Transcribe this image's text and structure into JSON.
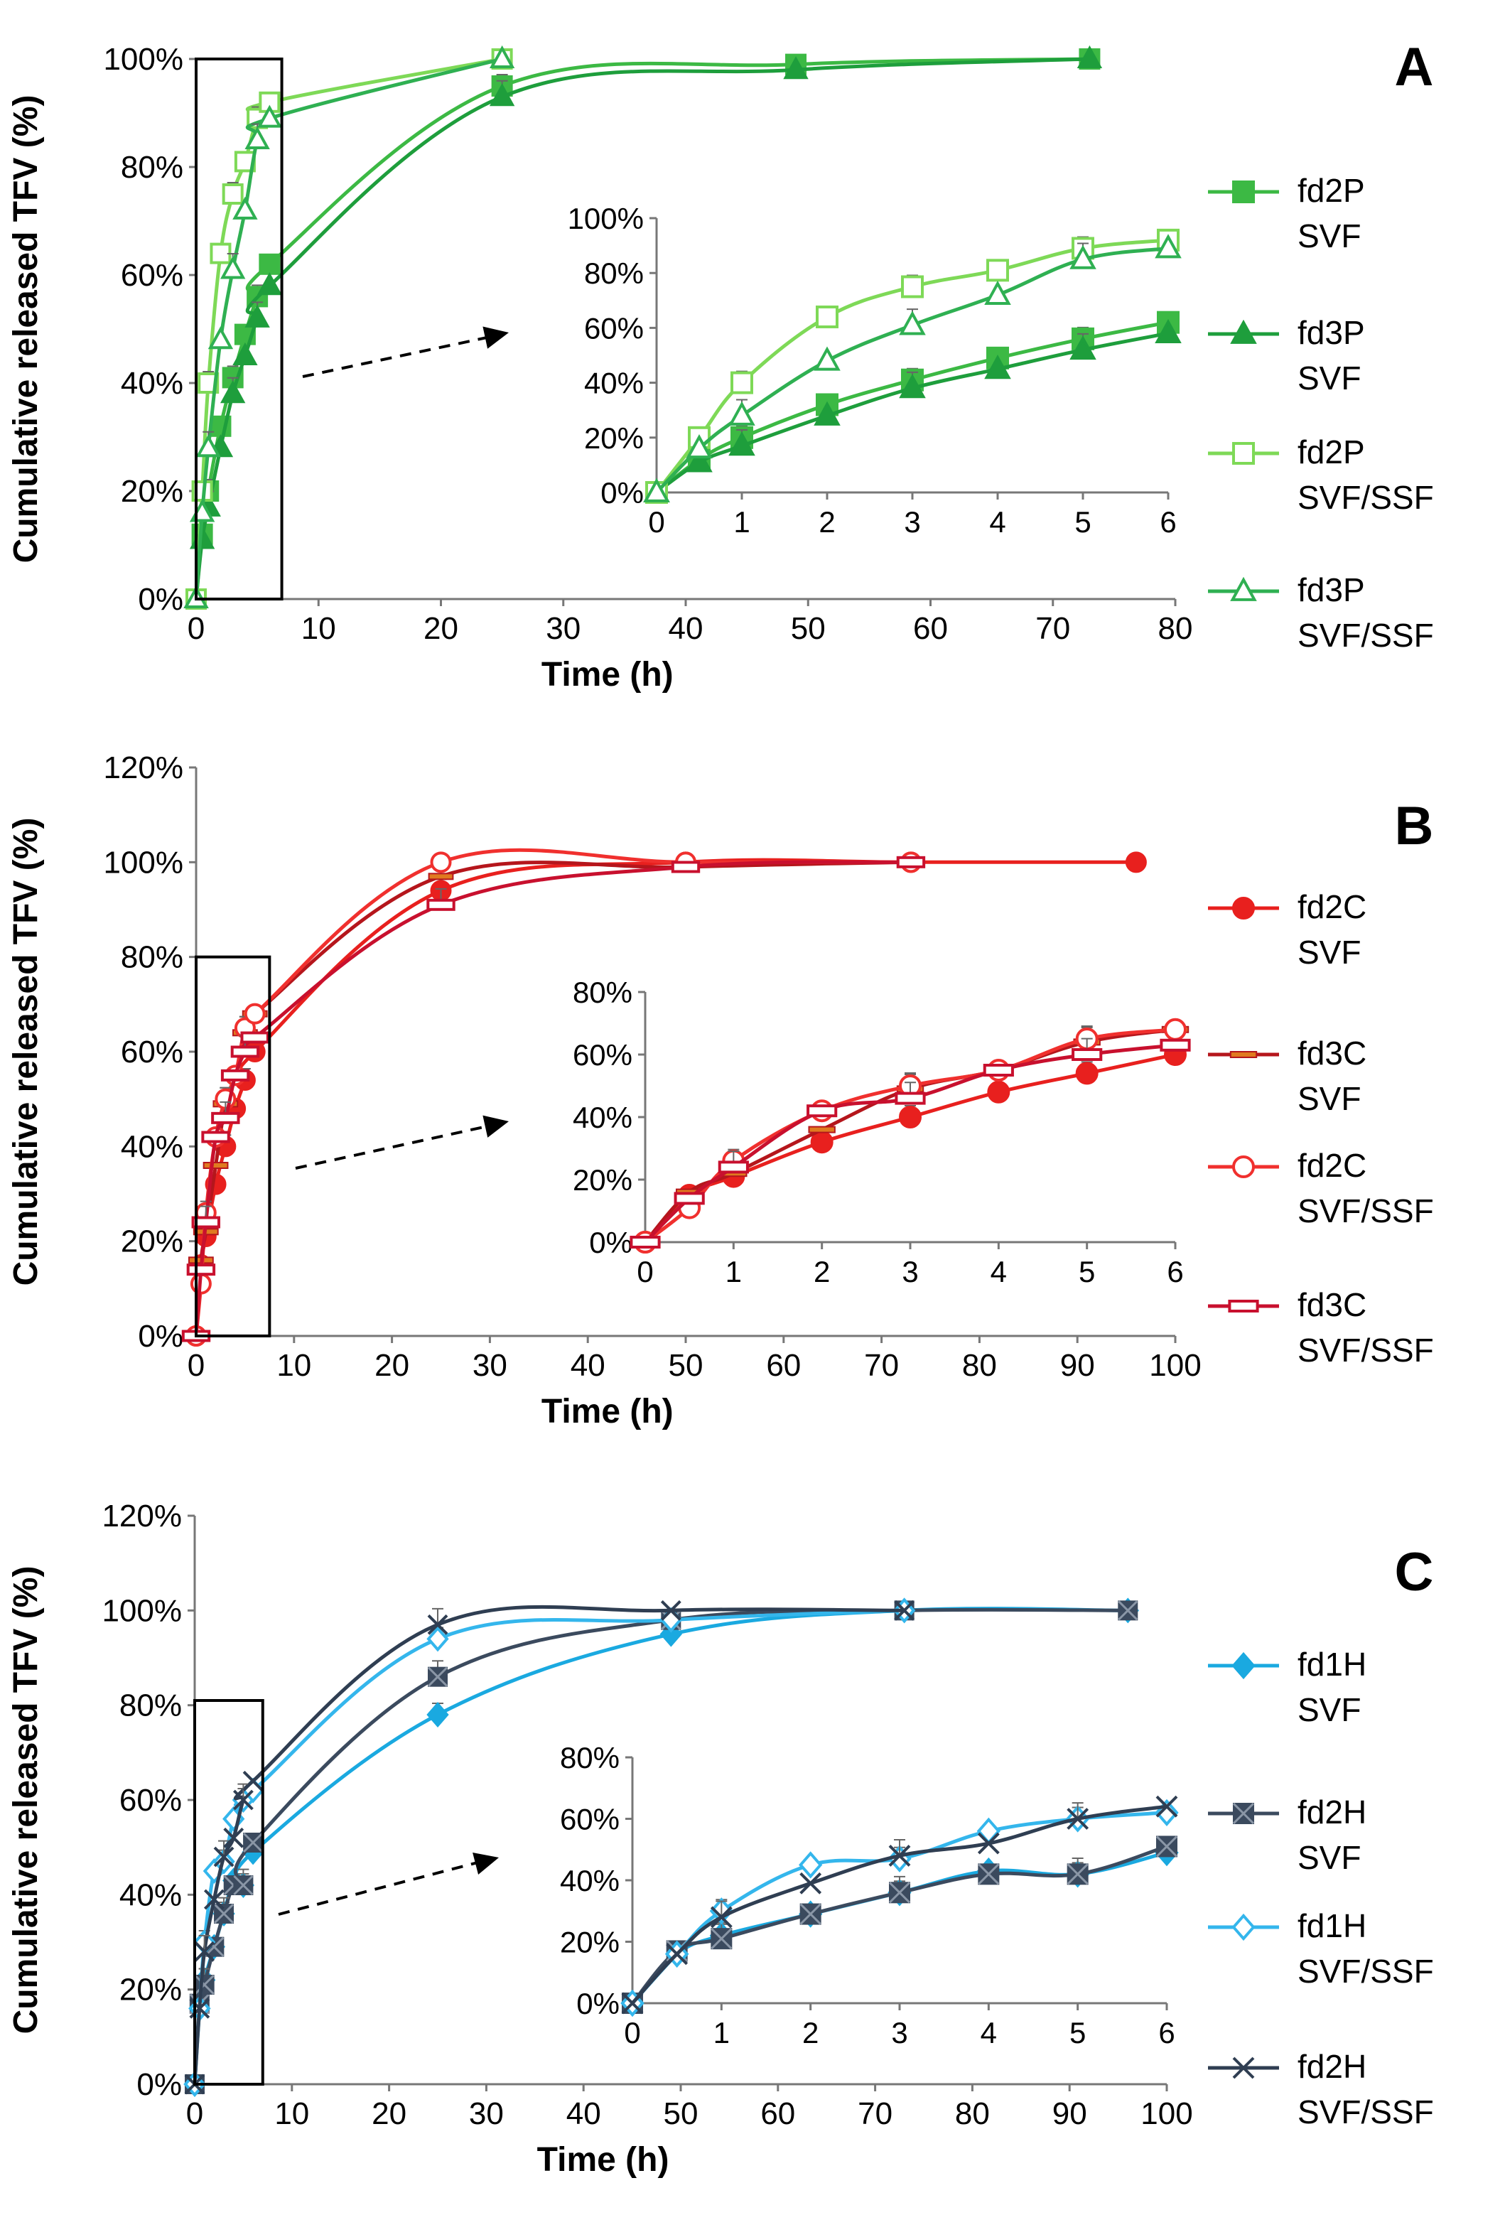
{
  "chart_data": [
    {
      "type": "line",
      "panel_label": "A",
      "ylabel": "Cumulative released TFV (%)",
      "xlabel": "Time (h)",
      "xlim": [
        0,
        80
      ],
      "ylim": [
        0,
        100
      ],
      "x_ticks": [
        "0",
        "10",
        "20",
        "30",
        "40",
        "50",
        "60",
        "70",
        "80"
      ],
      "y_ticks": [
        "0%",
        "20%",
        "40%",
        "60%",
        "80%",
        "100%"
      ],
      "series": [
        {
          "name": "fd2P SVF",
          "label_lines": [
            "fd2P",
            "SVF"
          ],
          "color": "#3cb944",
          "marker": "square",
          "fill": true,
          "x": [
            0,
            0.5,
            1,
            2,
            3,
            4,
            5,
            6,
            25,
            49,
            73
          ],
          "values": [
            0,
            12,
            20,
            32,
            41,
            49,
            56,
            62,
            95,
            99,
            100
          ]
        },
        {
          "name": "fd3P SVF",
          "label_lines": [
            "fd3P",
            "SVF"
          ],
          "color": "#1e9e3c",
          "marker": "triangle",
          "fill": true,
          "x": [
            0,
            0.5,
            1,
            2,
            3,
            4,
            5,
            6,
            25,
            49,
            73
          ],
          "values": [
            0,
            11,
            17,
            28,
            38,
            45,
            52,
            58,
            93,
            98,
            100
          ]
        },
        {
          "name": "fd2P SVF/SSF",
          "label_lines": [
            "fd2P",
            "SVF/SSF"
          ],
          "color": "#7ed957",
          "marker": "square",
          "fill": false,
          "x": [
            0,
            0.5,
            1,
            2,
            3,
            4,
            5,
            6,
            25
          ],
          "values": [
            0,
            20,
            40,
            64,
            75,
            81,
            89,
            92,
            100
          ]
        },
        {
          "name": "fd3P SVF/SSF",
          "label_lines": [
            "fd3P",
            "SVF/SSF"
          ],
          "color": "#2fb052",
          "marker": "triangle",
          "fill": false,
          "x": [
            0,
            0.5,
            1,
            2,
            3,
            4,
            5,
            6,
            25
          ],
          "values": [
            0,
            16,
            28,
            48,
            61,
            72,
            85,
            89,
            100
          ]
        }
      ],
      "inset": {
        "xlim": [
          0,
          6
        ],
        "ylim": [
          0,
          100
        ],
        "x_ticks": [
          "0",
          "1",
          "2",
          "3",
          "4",
          "5",
          "6"
        ],
        "y_ticks": [
          "0%",
          "20%",
          "40%",
          "60%",
          "80%",
          "100%"
        ]
      }
    },
    {
      "type": "line",
      "panel_label": "B",
      "ylabel": "Cumulative released TFV (%)",
      "xlabel": "Time (h)",
      "xlim": [
        0,
        100
      ],
      "ylim": [
        0,
        120
      ],
      "x_ticks": [
        "0",
        "10",
        "20",
        "30",
        "40",
        "50",
        "60",
        "70",
        "80",
        "90",
        "100"
      ],
      "y_ticks": [
        "0%",
        "20%",
        "40%",
        "60%",
        "80%",
        "100%",
        "120%"
      ],
      "series": [
        {
          "name": "fd2C SVF",
          "label_lines": [
            "fd2C",
            "SVF"
          ],
          "color": "#e8201e",
          "marker": "circle",
          "fill": true,
          "x": [
            0,
            0.5,
            1,
            2,
            3,
            4,
            5,
            6,
            25,
            50,
            73,
            96
          ],
          "values": [
            0,
            15,
            21,
            32,
            40,
            48,
            54,
            60,
            94,
            100,
            100,
            100
          ]
        },
        {
          "name": "fd3C SVF",
          "label_lines": [
            "fd3C",
            "SVF"
          ],
          "color": "#b5161c",
          "marker": "dash",
          "fill": true,
          "x": [
            0,
            0.5,
            1,
            2,
            3,
            4,
            5,
            6,
            25,
            50,
            73
          ],
          "values": [
            0,
            16,
            22,
            36,
            49,
            55,
            64,
            68,
            97,
            99,
            100
          ]
        },
        {
          "name": "fd2C SVF/SSF",
          "label_lines": [
            "fd2C",
            "SVF/SSF"
          ],
          "color": "#f0302e",
          "marker": "circle",
          "fill": false,
          "x": [
            0,
            0.5,
            1,
            2,
            3,
            4,
            5,
            6,
            25,
            50,
            73
          ],
          "values": [
            0,
            11,
            26,
            42,
            50,
            55,
            65,
            68,
            100,
            100,
            100
          ]
        },
        {
          "name": "fd3C SVF/SSF",
          "label_lines": [
            "fd3C",
            "SVF/SSF"
          ],
          "color": "#c8102e",
          "marker": "rect",
          "fill": false,
          "x": [
            0,
            0.5,
            1,
            2,
            3,
            4,
            5,
            6,
            25,
            50,
            73
          ],
          "values": [
            0,
            14,
            24,
            42,
            46,
            55,
            60,
            63,
            91,
            99,
            100
          ]
        }
      ],
      "inset": {
        "xlim": [
          0,
          6
        ],
        "ylim": [
          0,
          80
        ],
        "x_ticks": [
          "0",
          "1",
          "2",
          "3",
          "4",
          "5",
          "6"
        ],
        "y_ticks": [
          "0%",
          "20%",
          "40%",
          "60%",
          "80%"
        ]
      }
    },
    {
      "type": "line",
      "panel_label": "C",
      "ylabel": "Cumulative released TFV (%)",
      "xlabel": "Time (h)",
      "xlim": [
        0,
        100
      ],
      "ylim": [
        0,
        120
      ],
      "x_ticks": [
        "0",
        "10",
        "20",
        "30",
        "40",
        "50",
        "60",
        "70",
        "80",
        "90",
        "100"
      ],
      "y_ticks": [
        "0%",
        "20%",
        "40%",
        "60%",
        "80%",
        "100%",
        "120%"
      ],
      "series": [
        {
          "name": "fd1H SVF",
          "label_lines": [
            "fd1H",
            "SVF"
          ],
          "color": "#1aa9e0",
          "marker": "diamond",
          "fill": true,
          "x": [
            0,
            0.5,
            1,
            2,
            3,
            4,
            5,
            6,
            25,
            49,
            73,
            96
          ],
          "values": [
            0,
            16,
            22,
            29,
            36,
            43,
            42,
            49,
            78,
            95,
            100,
            100
          ]
        },
        {
          "name": "fd2H SVF",
          "label_lines": [
            "fd2H",
            "SVF"
          ],
          "color": "#3b4a5e",
          "marker": "boxx",
          "fill": true,
          "x": [
            0,
            0.5,
            1,
            2,
            3,
            4,
            5,
            6,
            25,
            49,
            73,
            96
          ],
          "values": [
            0,
            17,
            21,
            29,
            36,
            42,
            42,
            51,
            86,
            98,
            100,
            100
          ]
        },
        {
          "name": "fd1H SVF/SSF",
          "label_lines": [
            "fd1H",
            "SVF/SSF"
          ],
          "color": "#34b6ec",
          "marker": "diamond",
          "fill": false,
          "x": [
            0,
            0.5,
            1,
            2,
            3,
            4,
            5,
            6,
            25,
            49,
            73
          ],
          "values": [
            0,
            16,
            30,
            45,
            47,
            56,
            60,
            62,
            94,
            98,
            100
          ]
        },
        {
          "name": "fd2H SVF/SSF",
          "label_lines": [
            "fd2H",
            "SVF/SSF"
          ],
          "color": "#2f3e52",
          "marker": "x",
          "fill": false,
          "x": [
            0,
            0.5,
            1,
            2,
            3,
            4,
            5,
            6,
            25,
            49,
            73
          ],
          "values": [
            0,
            16,
            28,
            39,
            48,
            52,
            60,
            64,
            97,
            100,
            100
          ]
        }
      ],
      "inset": {
        "xlim": [
          0,
          6
        ],
        "ylim": [
          0,
          80
        ],
        "x_ticks": [
          "0",
          "1",
          "2",
          "3",
          "4",
          "5",
          "6"
        ],
        "y_ticks": [
          "0%",
          "20%",
          "40%",
          "60%",
          "80%"
        ]
      }
    }
  ]
}
